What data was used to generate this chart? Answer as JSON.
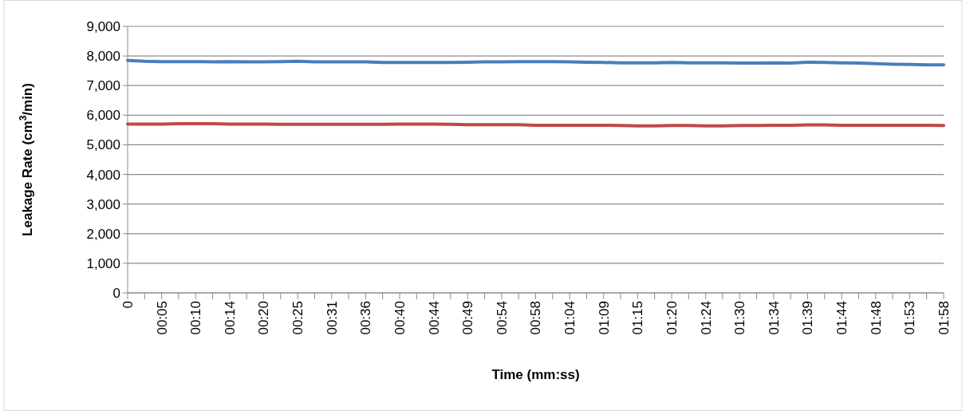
{
  "chart_data": {
    "type": "line",
    "xlabel": "Time (mm:ss)",
    "ylabel": "Leakage Rate (cm$^{3}$/min)",
    "categories": [
      "0",
      null,
      "00:05",
      null,
      "00:10",
      null,
      "00:14",
      null,
      "00:20",
      null,
      "00:25",
      null,
      "00:31",
      null,
      "00:36",
      null,
      "00:40",
      null,
      "00:44",
      null,
      "00:49",
      null,
      "00:54",
      null,
      "00:58",
      null,
      "01:04",
      null,
      "01:09",
      null,
      "01:15",
      null,
      "01:20",
      null,
      "01:24",
      null,
      "01:30",
      null,
      "01:34",
      null,
      "01:39",
      null,
      "01:44",
      null,
      "01:48",
      null,
      "01:53",
      null,
      "01:58"
    ],
    "series": [
      {
        "color": "#4a7ebb",
        "values": [
          7850,
          7820,
          7810,
          7810,
          7810,
          7800,
          7810,
          7800,
          7800,
          7810,
          7820,
          7800,
          7800,
          7800,
          7800,
          7780,
          7780,
          7780,
          7780,
          7780,
          7790,
          7800,
          7800,
          7810,
          7810,
          7810,
          7800,
          7790,
          7780,
          7770,
          7770,
          7770,
          7780,
          7770,
          7770,
          7770,
          7760,
          7760,
          7770,
          7760,
          7790,
          7780,
          7770,
          7760,
          7740,
          7720,
          7710,
          7700,
          7700
        ]
      },
      {
        "color": "#be4b48",
        "values": [
          5700,
          5700,
          5700,
          5710,
          5710,
          5710,
          5700,
          5700,
          5700,
          5690,
          5690,
          5690,
          5690,
          5690,
          5690,
          5690,
          5700,
          5700,
          5700,
          5690,
          5680,
          5680,
          5680,
          5680,
          5660,
          5660,
          5660,
          5660,
          5660,
          5650,
          5640,
          5640,
          5650,
          5650,
          5640,
          5640,
          5650,
          5650,
          5660,
          5660,
          5670,
          5670,
          5660,
          5660,
          5660,
          5660,
          5660,
          5660,
          5650
        ]
      }
    ],
    "ylim": [
      0,
      9000
    ],
    "yticks": [
      {
        "value": 0,
        "label": "0"
      },
      {
        "value": 1000,
        "label": "1,000"
      },
      {
        "value": 2000,
        "label": "2,000"
      },
      {
        "value": 3000,
        "label": "3,000"
      },
      {
        "value": 4000,
        "label": "4,000"
      },
      {
        "value": 5000,
        "label": "5,000"
      },
      {
        "value": 6000,
        "label": "6,000"
      },
      {
        "value": 7000,
        "label": "7,000"
      },
      {
        "value": 8000,
        "label": "8,000"
      },
      {
        "value": 9000,
        "label": "9,000"
      }
    ],
    "grid": "y",
    "marker": "none",
    "line_style": "solid"
  }
}
